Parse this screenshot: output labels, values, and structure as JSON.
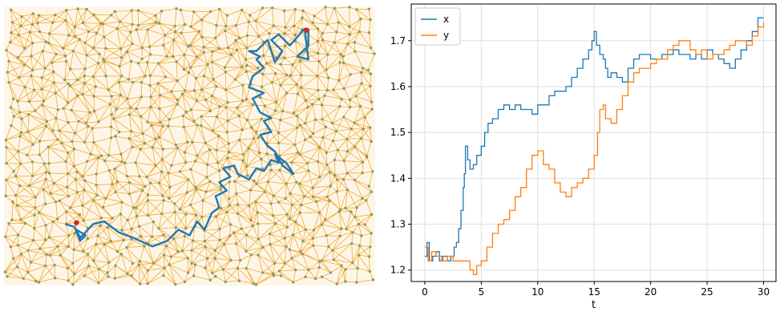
{
  "chart_data": [
    {
      "type": "network",
      "edge_color": "#f5a623",
      "node_color": "#8a9a6a",
      "path_color": "#1f77b4",
      "endpoint_color": "#d62728",
      "grid_line_count_note": "",
      "walk_path": [
        [
          0.165,
          0.78
        ],
        [
          0.19,
          0.79
        ],
        [
          0.205,
          0.84
        ],
        [
          0.22,
          0.82
        ],
        [
          0.195,
          0.8
        ],
        [
          0.205,
          0.83
        ],
        [
          0.24,
          0.78
        ],
        [
          0.27,
          0.77
        ],
        [
          0.31,
          0.81
        ],
        [
          0.35,
          0.83
        ],
        [
          0.4,
          0.86
        ],
        [
          0.44,
          0.84
        ],
        [
          0.47,
          0.8
        ],
        [
          0.5,
          0.82
        ],
        [
          0.52,
          0.77
        ],
        [
          0.54,
          0.8
        ],
        [
          0.56,
          0.74
        ],
        [
          0.58,
          0.72
        ],
        [
          0.57,
          0.68
        ],
        [
          0.6,
          0.66
        ],
        [
          0.58,
          0.63
        ],
        [
          0.61,
          0.61
        ],
        [
          0.59,
          0.58
        ],
        [
          0.62,
          0.57
        ],
        [
          0.63,
          0.6
        ],
        [
          0.66,
          0.62
        ],
        [
          0.68,
          0.58
        ],
        [
          0.7,
          0.59
        ],
        [
          0.72,
          0.55
        ],
        [
          0.74,
          0.56
        ],
        [
          0.73,
          0.53
        ],
        [
          0.76,
          0.56
        ],
        [
          0.78,
          0.6
        ],
        [
          0.75,
          0.57
        ],
        [
          0.73,
          0.52
        ],
        [
          0.71,
          0.5
        ],
        [
          0.69,
          0.46
        ],
        [
          0.72,
          0.45
        ],
        [
          0.7,
          0.41
        ],
        [
          0.72,
          0.4
        ],
        [
          0.69,
          0.38
        ],
        [
          0.67,
          0.33
        ],
        [
          0.7,
          0.31
        ],
        [
          0.66,
          0.29
        ],
        [
          0.67,
          0.25
        ],
        [
          0.7,
          0.22
        ],
        [
          0.68,
          0.19
        ],
        [
          0.69,
          0.18
        ],
        [
          0.66,
          0.16
        ],
        [
          0.68,
          0.16
        ],
        [
          0.71,
          0.12
        ],
        [
          0.72,
          0.16
        ],
        [
          0.73,
          0.2
        ],
        [
          0.75,
          0.16
        ],
        [
          0.72,
          0.12
        ],
        [
          0.74,
          0.1
        ],
        [
          0.77,
          0.14
        ],
        [
          0.79,
          0.11
        ],
        [
          0.81,
          0.08
        ],
        [
          0.82,
          0.19
        ],
        [
          0.79,
          0.18
        ],
        [
          0.82,
          0.14
        ],
        [
          0.82,
          0.08
        ]
      ],
      "start_point": [
        0.195,
        0.775
      ],
      "end_point": [
        0.815,
        0.085
      ]
    },
    {
      "type": "line",
      "xlabel": "t",
      "ylabel": "",
      "title": "",
      "xlim": [
        -1.2,
        31.1
      ],
      "ylim": [
        1.175,
        1.78
      ],
      "xticks": [
        0,
        5,
        10,
        15,
        20,
        25,
        30
      ],
      "yticks": [
        1.2,
        1.3,
        1.4,
        1.5,
        1.6,
        1.7
      ],
      "grid": true,
      "legend_position": "top-left",
      "series": [
        {
          "name": "x",
          "color": "#1f77b4",
          "points": [
            [
              0,
              1.23
            ],
            [
              0.2,
              1.26
            ],
            [
              0.4,
              1.22
            ],
            [
              0.7,
              1.23
            ],
            [
              1.0,
              1.24
            ],
            [
              1.3,
              1.22
            ],
            [
              1.6,
              1.23
            ],
            [
              2.0,
              1.22
            ],
            [
              2.3,
              1.23
            ],
            [
              2.6,
              1.25
            ],
            [
              2.8,
              1.26
            ],
            [
              3.0,
              1.29
            ],
            [
              3.2,
              1.33
            ],
            [
              3.4,
              1.38
            ],
            [
              3.5,
              1.41
            ],
            [
              3.6,
              1.47
            ],
            [
              3.8,
              1.44
            ],
            [
              4.0,
              1.42
            ],
            [
              4.3,
              1.43
            ],
            [
              4.6,
              1.45
            ],
            [
              5.0,
              1.47
            ],
            [
              5.3,
              1.5
            ],
            [
              5.6,
              1.52
            ],
            [
              6.0,
              1.53
            ],
            [
              6.5,
              1.55
            ],
            [
              7.0,
              1.56
            ],
            [
              7.5,
              1.55
            ],
            [
              8.0,
              1.56
            ],
            [
              8.5,
              1.55
            ],
            [
              9.0,
              1.55
            ],
            [
              9.5,
              1.54
            ],
            [
              10.0,
              1.56
            ],
            [
              10.5,
              1.56
            ],
            [
              11.0,
              1.58
            ],
            [
              11.5,
              1.59
            ],
            [
              12.0,
              1.59
            ],
            [
              12.5,
              1.6
            ],
            [
              13.0,
              1.62
            ],
            [
              13.5,
              1.64
            ],
            [
              14.0,
              1.66
            ],
            [
              14.5,
              1.68
            ],
            [
              14.8,
              1.7
            ],
            [
              15.0,
              1.72
            ],
            [
              15.2,
              1.69
            ],
            [
              15.5,
              1.67
            ],
            [
              15.8,
              1.66
            ],
            [
              16.0,
              1.64
            ],
            [
              16.2,
              1.62
            ],
            [
              16.5,
              1.63
            ],
            [
              17.0,
              1.62
            ],
            [
              17.5,
              1.61
            ],
            [
              18.0,
              1.64
            ],
            [
              18.5,
              1.66
            ],
            [
              19.0,
              1.67
            ],
            [
              19.5,
              1.67
            ],
            [
              20.0,
              1.66
            ],
            [
              20.5,
              1.66
            ],
            [
              21.0,
              1.67
            ],
            [
              21.5,
              1.67
            ],
            [
              22.0,
              1.68
            ],
            [
              22.5,
              1.67
            ],
            [
              23.0,
              1.67
            ],
            [
              23.5,
              1.66
            ],
            [
              24.0,
              1.67
            ],
            [
              24.5,
              1.66
            ],
            [
              25.0,
              1.68
            ],
            [
              25.5,
              1.67
            ],
            [
              26.0,
              1.66
            ],
            [
              26.5,
              1.65
            ],
            [
              27.0,
              1.64
            ],
            [
              27.5,
              1.66
            ],
            [
              28.0,
              1.68
            ],
            [
              28.5,
              1.7
            ],
            [
              29.0,
              1.72
            ],
            [
              29.5,
              1.75
            ],
            [
              30.0,
              1.75
            ]
          ]
        },
        {
          "name": "y",
          "color": "#ff7f0e",
          "points": [
            [
              0,
              1.25
            ],
            [
              0.3,
              1.22
            ],
            [
              0.6,
              1.24
            ],
            [
              1.0,
              1.23
            ],
            [
              1.5,
              1.22
            ],
            [
              2.0,
              1.23
            ],
            [
              2.5,
              1.22
            ],
            [
              3.0,
              1.22
            ],
            [
              3.5,
              1.22
            ],
            [
              4.0,
              1.2
            ],
            [
              4.3,
              1.19
            ],
            [
              4.6,
              1.21
            ],
            [
              5.0,
              1.22
            ],
            [
              5.5,
              1.25
            ],
            [
              6.0,
              1.28
            ],
            [
              6.5,
              1.3
            ],
            [
              7.0,
              1.31
            ],
            [
              7.5,
              1.33
            ],
            [
              8.0,
              1.36
            ],
            [
              8.5,
              1.38
            ],
            [
              9.0,
              1.42
            ],
            [
              9.5,
              1.45
            ],
            [
              10.0,
              1.46
            ],
            [
              10.5,
              1.43
            ],
            [
              11.0,
              1.42
            ],
            [
              11.5,
              1.39
            ],
            [
              12.0,
              1.37
            ],
            [
              12.5,
              1.36
            ],
            [
              13.0,
              1.38
            ],
            [
              13.5,
              1.39
            ],
            [
              14.0,
              1.4
            ],
            [
              14.5,
              1.42
            ],
            [
              15.0,
              1.45
            ],
            [
              15.3,
              1.5
            ],
            [
              15.5,
              1.55
            ],
            [
              15.8,
              1.56
            ],
            [
              16.0,
              1.53
            ],
            [
              16.5,
              1.52
            ],
            [
              17.0,
              1.55
            ],
            [
              17.5,
              1.58
            ],
            [
              18.0,
              1.61
            ],
            [
              18.5,
              1.63
            ],
            [
              19.0,
              1.64
            ],
            [
              19.5,
              1.64
            ],
            [
              20.0,
              1.65
            ],
            [
              20.5,
              1.66
            ],
            [
              21.0,
              1.66
            ],
            [
              21.5,
              1.68
            ],
            [
              22.0,
              1.69
            ],
            [
              22.5,
              1.7
            ],
            [
              23.0,
              1.7
            ],
            [
              23.5,
              1.68
            ],
            [
              24.0,
              1.67
            ],
            [
              24.5,
              1.68
            ],
            [
              25.0,
              1.66
            ],
            [
              25.5,
              1.67
            ],
            [
              26.0,
              1.67
            ],
            [
              26.5,
              1.68
            ],
            [
              27.0,
              1.69
            ],
            [
              27.5,
              1.7
            ],
            [
              28.0,
              1.7
            ],
            [
              28.5,
              1.69
            ],
            [
              29.0,
              1.71
            ],
            [
              29.5,
              1.73
            ],
            [
              30.0,
              1.74
            ]
          ]
        }
      ]
    }
  ]
}
